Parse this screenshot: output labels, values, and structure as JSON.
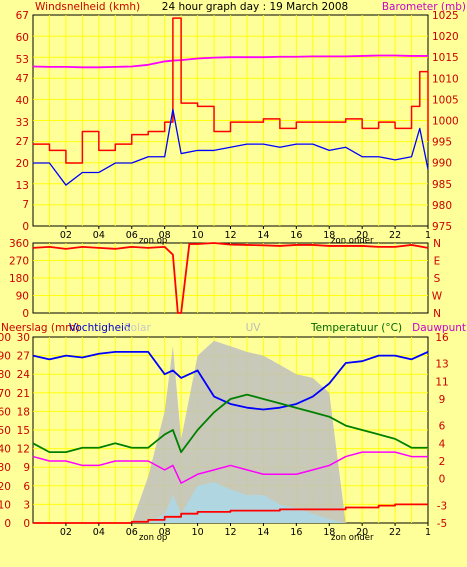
{
  "page": {
    "title": "24 hour graph day : 19 March 2008",
    "x_tick_labels": [
      "02",
      "04",
      "06",
      "08",
      "10",
      "12",
      "14",
      "16",
      "18",
      "20",
      "22",
      "1"
    ],
    "sunrise_label": "zon op",
    "sunset_label": "zon onder",
    "colors": {
      "background": "#ffff99",
      "wind_gust": "#ff0000",
      "wind_avg": "#0000ff",
      "barometer": "#ff00ff",
      "direction": "#ff0000",
      "humidity": "#0000ff",
      "temperature": "#008000",
      "dewpoint": "#ff00ff",
      "rain": "#ff0000",
      "solar": "#c0c0c0",
      "uv": "#add8e6"
    }
  },
  "chart_data": [
    {
      "type": "line",
      "title": "24 hour graph day : 19 March 2008",
      "ylabel": "Windsnelheid (kmh)",
      "y2label": "Barometer (mb)",
      "ylim": [
        0,
        67
      ],
      "yticks": [
        0,
        7,
        13,
        20,
        27,
        33,
        40,
        47,
        53,
        60,
        67
      ],
      "y2lim": [
        975,
        1025
      ],
      "y2ticks": [
        975,
        980,
        985,
        990,
        995,
        1000,
        1005,
        1010,
        1015,
        1020,
        1025
      ],
      "x": [
        0,
        1,
        2,
        3,
        4,
        5,
        6,
        7,
        8,
        8.5,
        9,
        10,
        11,
        12,
        13,
        14,
        15,
        16,
        17,
        18,
        19,
        20,
        21,
        22,
        23,
        23.5,
        24
      ],
      "series": [
        {
          "name": "gust",
          "values": [
            26,
            24,
            20,
            30,
            24,
            26,
            29,
            30,
            33,
            66,
            39,
            38,
            30,
            33,
            33,
            34,
            31,
            33,
            33,
            33,
            34,
            31,
            33,
            31,
            38,
            49,
            27
          ]
        },
        {
          "name": "avg",
          "values": [
            20,
            20,
            13,
            17,
            17,
            20,
            20,
            22,
            22,
            37,
            23,
            24,
            24,
            25,
            26,
            26,
            25,
            26,
            26,
            24,
            25,
            22,
            22,
            21,
            22,
            31,
            18
          ]
        },
        {
          "name": "barometer",
          "values": [
            1012.8,
            1012.7,
            1012.7,
            1012.6,
            1012.6,
            1012.7,
            1012.8,
            1013.2,
            1014.0,
            1014.2,
            1014.3,
            1014.7,
            1014.9,
            1015.0,
            1015.0,
            1015.0,
            1015.1,
            1015.1,
            1015.2,
            1015.2,
            1015.2,
            1015.3,
            1015.4,
            1015.4,
            1015.3,
            1015.3,
            1015.3
          ]
        }
      ]
    },
    {
      "type": "line",
      "ylim": [
        0,
        360
      ],
      "yticks": [
        0,
        90,
        180,
        270,
        360
      ],
      "y2ticks": [
        "N",
        "E",
        "S",
        "W",
        "N"
      ],
      "x": [
        0,
        1,
        2,
        3,
        4,
        5,
        6,
        7,
        8,
        8.5,
        8.8,
        9,
        9.5,
        10,
        11,
        12,
        13,
        14,
        15,
        16,
        17,
        18,
        19,
        20,
        21,
        22,
        23,
        24
      ],
      "series": [
        {
          "name": "direction",
          "values": [
            335,
            340,
            330,
            340,
            335,
            330,
            340,
            335,
            340,
            300,
            0,
            0,
            355,
            355,
            360,
            352,
            350,
            348,
            345,
            350,
            350,
            345,
            345,
            345,
            340,
            340,
            350,
            335
          ]
        }
      ]
    },
    {
      "type": "line",
      "ylabel": "Neerslag (mm)",
      "ylabel2": "Vochtigheid",
      "label_solar": "Solar",
      "label_uv": "UV",
      "y2label": "Temperatuur (°C)",
      "y2label2": "Dauwpunt",
      "ylim": [
        0,
        100
      ],
      "yticks": [
        0,
        10,
        20,
        30,
        40,
        50,
        60,
        70,
        80,
        90,
        100
      ],
      "rain_ticks": [
        0,
        3,
        6,
        9,
        12,
        15,
        18,
        21,
        24,
        27,
        30
      ],
      "y2lim": [
        -5,
        16
      ],
      "y2ticks": [
        -5,
        -3,
        0,
        2,
        4,
        6,
        9,
        11,
        13,
        16
      ],
      "x": [
        0,
        1,
        2,
        3,
        4,
        5,
        6,
        7,
        8,
        8.5,
        9,
        10,
        11,
        12,
        13,
        14,
        15,
        16,
        17,
        18,
        19,
        20,
        21,
        22,
        23,
        24
      ],
      "series": [
        {
          "name": "humidity",
          "values": [
            90,
            88,
            90,
            89,
            91,
            92,
            92,
            92,
            80,
            82,
            78,
            82,
            68,
            64,
            62,
            61,
            62,
            64,
            68,
            75,
            86,
            87,
            90,
            90,
            88,
            92
          ]
        },
        {
          "name": "temperature",
          "values": [
            4.0,
            3.0,
            3.0,
            3.5,
            3.5,
            4.0,
            3.5,
            3.5,
            5.0,
            5.5,
            3.0,
            5.5,
            7.5,
            9.0,
            9.5,
            9.0,
            8.5,
            8.0,
            7.5,
            7.0,
            6.0,
            5.5,
            5.0,
            4.5,
            3.5,
            3.5
          ]
        },
        {
          "name": "dewpoint",
          "values": [
            2.5,
            2.0,
            2.0,
            1.5,
            1.5,
            2.0,
            2.0,
            2.0,
            1.0,
            1.5,
            -0.5,
            0.5,
            1.0,
            1.5,
            1.0,
            0.5,
            0.5,
            0.5,
            1.0,
            1.5,
            2.5,
            3.0,
            3.0,
            3.0,
            2.5,
            2.5
          ]
        },
        {
          "name": "rain",
          "values": [
            0,
            0,
            0,
            0,
            0,
            0,
            0.2,
            0.5,
            1.0,
            1.0,
            1.5,
            1.8,
            1.8,
            2.0,
            2.0,
            2.0,
            2.2,
            2.2,
            2.2,
            2.2,
            2.5,
            2.5,
            2.8,
            3.0,
            3.0,
            3.0
          ]
        },
        {
          "name": "solar",
          "values": [
            0,
            0,
            0,
            0,
            0,
            0,
            0,
            25,
            60,
            95,
            45,
            90,
            98,
            95,
            92,
            90,
            85,
            80,
            78,
            70,
            0,
            0,
            0,
            0,
            0,
            0
          ]
        },
        {
          "name": "uv",
          "values": [
            0,
            0,
            0,
            0,
            0,
            0,
            0,
            0,
            5,
            15,
            5,
            20,
            22,
            18,
            15,
            15,
            10,
            8,
            5,
            2,
            0,
            0,
            0,
            0,
            0,
            0
          ]
        }
      ]
    }
  ]
}
